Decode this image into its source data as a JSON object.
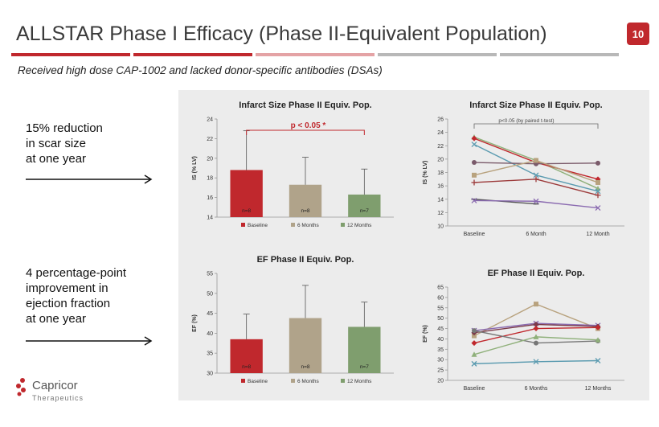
{
  "slide": {
    "title": "ALLSTAR Phase I Efficacy (Phase II-Equivalent Population)",
    "page_number": "10",
    "subtitle": "Received high dose CAP-1002 and lacked donor-specific antibodies (DSAs)",
    "notes": [
      [
        "15% reduction",
        "in scar size",
        "at one year"
      ],
      [
        "4 percentage-point",
        "improvement in",
        "ejection fraction",
        "at one year"
      ]
    ],
    "logo": {
      "name": "Capricor",
      "tagline": "Therapeutics",
      "icon": "capricor-logo-icon"
    },
    "colors": {
      "accent": "#c0282d",
      "gray": "#b8b8b8",
      "pink": "#e4a3a5"
    }
  },
  "chart_data": [
    {
      "type": "bar",
      "title": "Infarct Size Phase II Equiv. Pop.",
      "ylabel": "IS (% LV)",
      "ylim": [
        14,
        24
      ],
      "yticks": [
        14,
        16,
        18,
        20,
        22,
        24
      ],
      "categories": [
        "Baseline",
        "6 Months",
        "12 Months"
      ],
      "values": [
        18.8,
        17.3,
        16.3
      ],
      "errors": [
        4.0,
        2.8,
        2.6
      ],
      "bar_labels": [
        "n=8",
        "n=8",
        "n=7"
      ],
      "colors": [
        "#c0282d",
        "#b0a38a",
        "#7f9e6e"
      ],
      "annotation": "p < 0.05 *",
      "legend": [
        "Baseline",
        "6 Months",
        "12 Months"
      ]
    },
    {
      "type": "line",
      "title": "Infarct Size Phase II Equiv. Pop.",
      "ylabel": "IS (% LV)",
      "ylim": [
        10,
        26
      ],
      "yticks": [
        10,
        12,
        14,
        16,
        18,
        20,
        22,
        24,
        26
      ],
      "categories": [
        "Baseline",
        "6 Month",
        "12 Month"
      ],
      "annotation": "p<0.05 (by paired t-test)",
      "series": [
        {
          "values": [
            23.3,
            19.8,
            15.6
          ],
          "color": "#8fb07a",
          "marker": "triangle"
        },
        {
          "values": [
            23.1,
            19.5,
            17.0
          ],
          "color": "#c0282d",
          "marker": "diamond"
        },
        {
          "values": [
            22.2,
            17.6,
            15.2
          ],
          "color": "#5b9bb0",
          "marker": "x"
        },
        {
          "values": [
            19.5,
            19.3,
            19.4
          ],
          "color": "#7a5a6a",
          "marker": "circle"
        },
        {
          "values": [
            17.6,
            19.8,
            16.5
          ],
          "color": "#b8a27e",
          "marker": "square"
        },
        {
          "values": [
            16.5,
            17.0,
            14.6
          ],
          "color": "#9c3a3a",
          "marker": "plus"
        },
        {
          "values": [
            14.0,
            13.3,
            null
          ],
          "color": "#555555",
          "marker": "dash"
        },
        {
          "values": [
            13.8,
            13.7,
            12.7
          ],
          "color": "#8a6ab0",
          "marker": "x"
        }
      ]
    },
    {
      "type": "bar",
      "title": "EF Phase II Equiv. Pop.",
      "ylabel": "EF (%)",
      "ylim": [
        30,
        55
      ],
      "yticks": [
        30,
        35,
        40,
        45,
        50,
        55
      ],
      "categories": [
        "Baseline",
        "6 Months",
        "12 Months"
      ],
      "values": [
        38.5,
        43.8,
        41.6
      ],
      "errors": [
        6.3,
        8.2,
        6.2
      ],
      "bar_labels": [
        "n=8",
        "n=8",
        "n=7"
      ],
      "colors": [
        "#c0282d",
        "#b0a38a",
        "#7f9e6e"
      ],
      "legend": [
        "Baseline",
        "6 Months",
        "12 Months"
      ]
    },
    {
      "type": "line",
      "title": "EF Phase II Equiv. Pop.",
      "ylabel": "EF (%)",
      "ylim": [
        20,
        65
      ],
      "yticks": [
        20,
        25,
        30,
        35,
        40,
        45,
        50,
        55,
        60,
        65
      ],
      "categories": [
        "Baseline",
        "6 Months",
        "12 Months"
      ],
      "series": [
        {
          "values": [
            41.5,
            56.8,
            45.0
          ],
          "color": "#b8a27e",
          "marker": "square"
        },
        {
          "values": [
            44.0,
            47.5,
            46.5
          ],
          "color": "#8a6ab0",
          "marker": "x"
        },
        {
          "values": [
            43.0,
            47.0,
            46.0
          ],
          "color": "#7a3a4a",
          "marker": "diamond"
        },
        {
          "values": [
            38.0,
            45.0,
            45.5
          ],
          "color": "#c0282d",
          "marker": "diamond"
        },
        {
          "values": [
            44.0,
            38.0,
            39.0
          ],
          "color": "#777777",
          "marker": "circle"
        },
        {
          "values": [
            32.5,
            41.0,
            39.5
          ],
          "color": "#8fb07a",
          "marker": "triangle"
        },
        {
          "values": [
            28.0,
            29.0,
            29.5
          ],
          "color": "#5b9bb0",
          "marker": "x"
        }
      ]
    }
  ]
}
